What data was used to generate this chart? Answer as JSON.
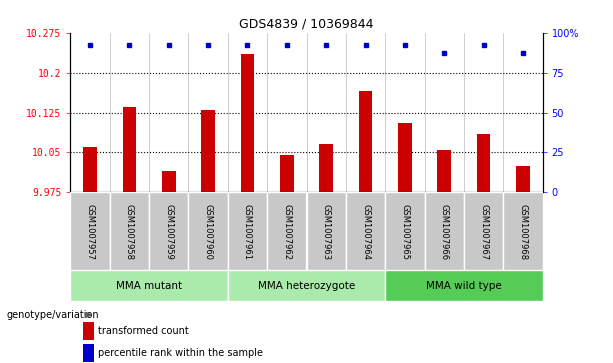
{
  "title": "GDS4839 / 10369844",
  "samples": [
    "GSM1007957",
    "GSM1007958",
    "GSM1007959",
    "GSM1007960",
    "GSM1007961",
    "GSM1007962",
    "GSM1007963",
    "GSM1007964",
    "GSM1007965",
    "GSM1007966",
    "GSM1007967",
    "GSM1007968"
  ],
  "red_values": [
    10.06,
    10.135,
    10.015,
    10.13,
    10.235,
    10.045,
    10.065,
    10.165,
    10.105,
    10.055,
    10.085,
    10.025
  ],
  "blue_values": [
    92,
    92,
    92,
    92,
    92,
    92,
    92,
    92,
    92,
    87,
    92,
    87
  ],
  "ymin": 9.975,
  "ymax": 10.275,
  "y_ticks": [
    9.975,
    10.05,
    10.125,
    10.2,
    10.275
  ],
  "y_tick_labels": [
    "9.975",
    "10.05",
    "10.125",
    "10.2",
    "10.275"
  ],
  "right_yticks": [
    0,
    25,
    50,
    75,
    100
  ],
  "right_ytick_labels": [
    "0",
    "25",
    "50",
    "75",
    "100%"
  ],
  "groups": [
    {
      "label": "MMA mutant",
      "start": 0,
      "end": 3
    },
    {
      "label": "MMA heterozygote",
      "start": 4,
      "end": 7
    },
    {
      "label": "MMA wild type",
      "start": 8,
      "end": 11
    }
  ],
  "bar_color": "#CC0000",
  "dot_color": "#0000CC",
  "sample_box_color": "#C8C8C8",
  "group_color_light": "#AAEAAA",
  "group_color_dark": "#55CC55",
  "legend_red_label": "transformed count",
  "legend_blue_label": "percentile rank within the sample",
  "genotype_label": "genotype/variation"
}
